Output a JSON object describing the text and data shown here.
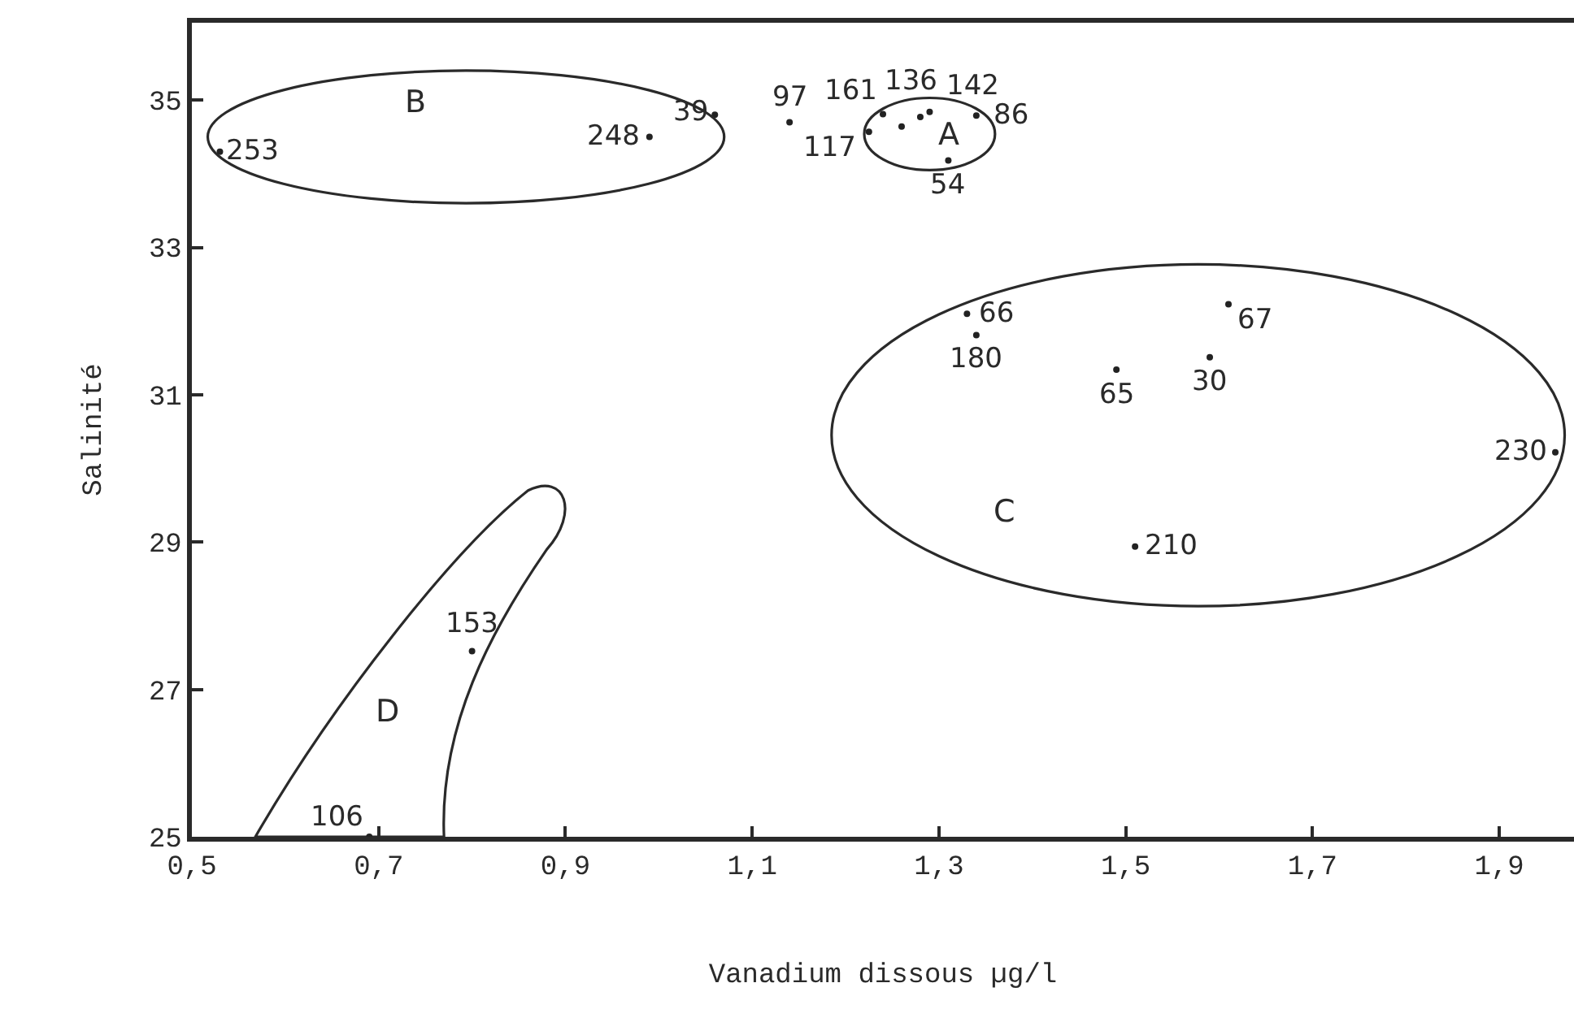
{
  "chart_data": {
    "type": "scatter",
    "xlabel": "Vanadium dissous µg/l",
    "ylabel": "Salinité",
    "xlim": [
      0.5,
      1.98
    ],
    "ylim": [
      25,
      36.05
    ],
    "xticks": [
      {
        "value": 0.5,
        "label": "0,5"
      },
      {
        "value": 0.7,
        "label": "0,7"
      },
      {
        "value": 0.9,
        "label": "0,9"
      },
      {
        "value": 1.1,
        "label": "1,1"
      },
      {
        "value": 1.3,
        "label": "1,3"
      },
      {
        "value": 1.5,
        "label": "1,5"
      },
      {
        "value": 1.7,
        "label": "1,7"
      },
      {
        "value": 1.9,
        "label": "1,9"
      }
    ],
    "yticks": [
      25,
      27,
      29,
      31,
      33,
      35
    ],
    "grid": false,
    "marker": "circle",
    "series": [
      {
        "color": "#222222",
        "x": [
          0.53,
          0.99,
          1.06,
          1.14,
          1.225,
          1.24,
          1.26,
          1.28,
          1.29,
          1.34,
          1.31,
          1.33,
          1.34,
          1.49,
          1.61,
          1.59,
          1.96,
          1.51,
          0.8,
          0.69
        ],
        "values": [
          34.3,
          34.5,
          34.8,
          34.7,
          34.57,
          34.81,
          34.64,
          34.77,
          34.84,
          34.79,
          34.18,
          32.1,
          31.81,
          31.34,
          32.23,
          31.51,
          30.22,
          28.94,
          27.52,
          25.0
        ]
      }
    ],
    "annotations": [
      {
        "text": "253",
        "x": 0.53,
        "y": 34.3
      },
      {
        "text": "248",
        "x": 0.99,
        "y": 34.5
      },
      {
        "text": "39",
        "x": 1.06,
        "y": 34.8
      },
      {
        "text": "97",
        "x": 1.14,
        "y": 34.7
      },
      {
        "text": "117",
        "x": 1.225,
        "y": 34.57
      },
      {
        "text": "161",
        "x": 1.24,
        "y": 34.81
      },
      {
        "text": "136",
        "x": 1.28,
        "y": 34.77
      },
      {
        "text": "142",
        "x": 1.29,
        "y": 34.84
      },
      {
        "text": "86",
        "x": 1.34,
        "y": 34.79
      },
      {
        "text": "54",
        "x": 1.31,
        "y": 34.18
      },
      {
        "text": "66",
        "x": 1.33,
        "y": 32.1
      },
      {
        "text": "180",
        "x": 1.34,
        "y": 31.81
      },
      {
        "text": "65",
        "x": 1.49,
        "y": 31.34
      },
      {
        "text": "67",
        "x": 1.61,
        "y": 32.23
      },
      {
        "text": "30",
        "x": 1.59,
        "y": 31.51
      },
      {
        "text": "230",
        "x": 1.96,
        "y": 30.22
      },
      {
        "text": "210",
        "x": 1.51,
        "y": 28.94
      },
      {
        "text": "153",
        "x": 0.8,
        "y": 27.52
      },
      {
        "text": "106",
        "x": 0.69,
        "y": 25.0
      },
      "A",
      "B",
      "C",
      "D"
    ]
  }
}
